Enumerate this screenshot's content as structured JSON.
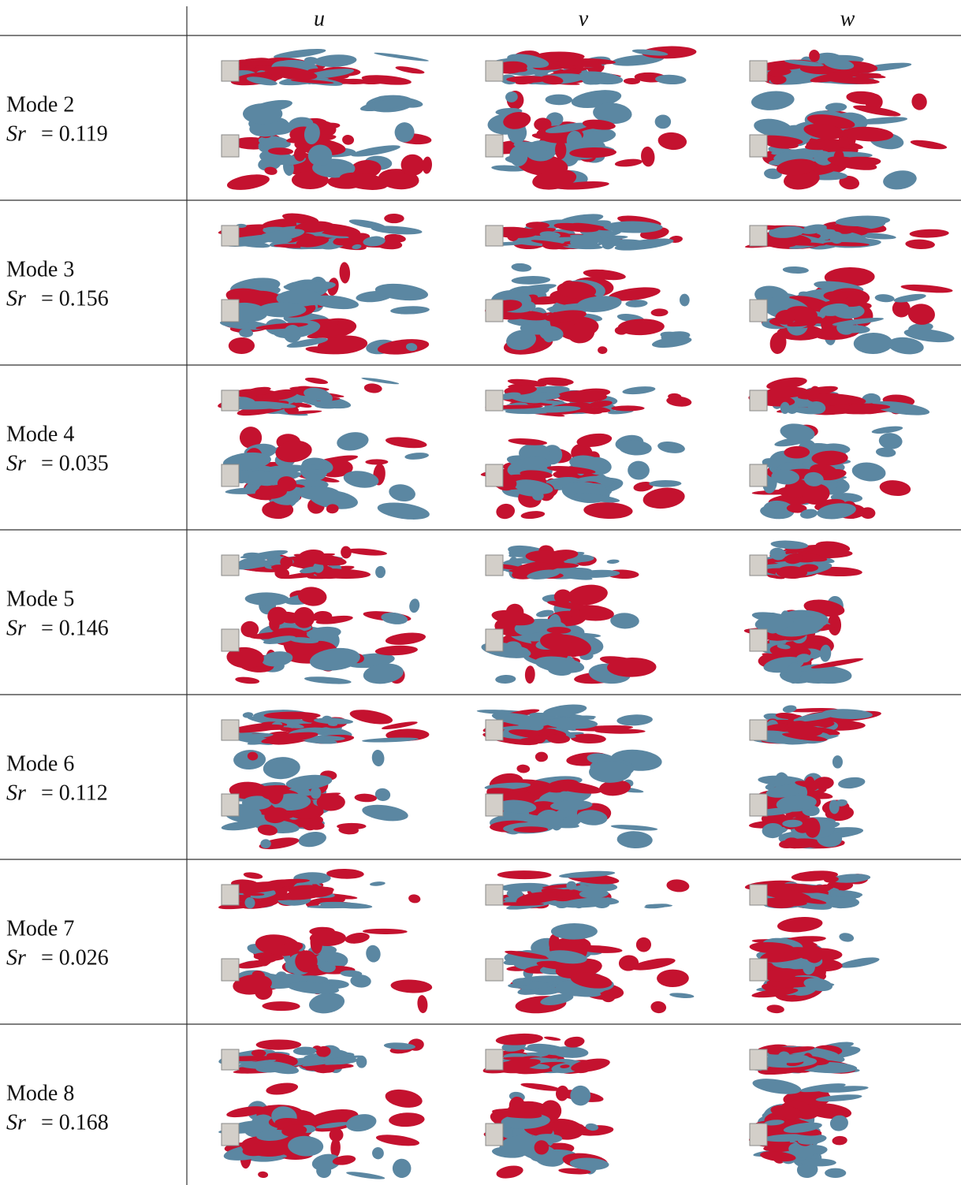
{
  "table": {
    "columns": [
      "u",
      "v",
      "w"
    ],
    "rows": [
      {
        "mode": "Mode 2",
        "sr_symbol": "Sr",
        "sr_value": "= 0.119"
      },
      {
        "mode": "Mode 3",
        "sr_symbol": "Sr",
        "sr_value": "= 0.156"
      },
      {
        "mode": "Mode 4",
        "sr_symbol": "Sr",
        "sr_value": "= 0.035"
      },
      {
        "mode": "Mode 5",
        "sr_symbol": "Sr",
        "sr_value": "= 0.146"
      },
      {
        "mode": "Mode 6",
        "sr_symbol": "Sr",
        "sr_value": "= 0.112"
      },
      {
        "mode": "Mode 7",
        "sr_symbol": "Sr",
        "sr_value": "= 0.026"
      },
      {
        "mode": "Mode 8",
        "sr_symbol": "Sr",
        "sr_value": "= 0.168"
      }
    ]
  }
}
